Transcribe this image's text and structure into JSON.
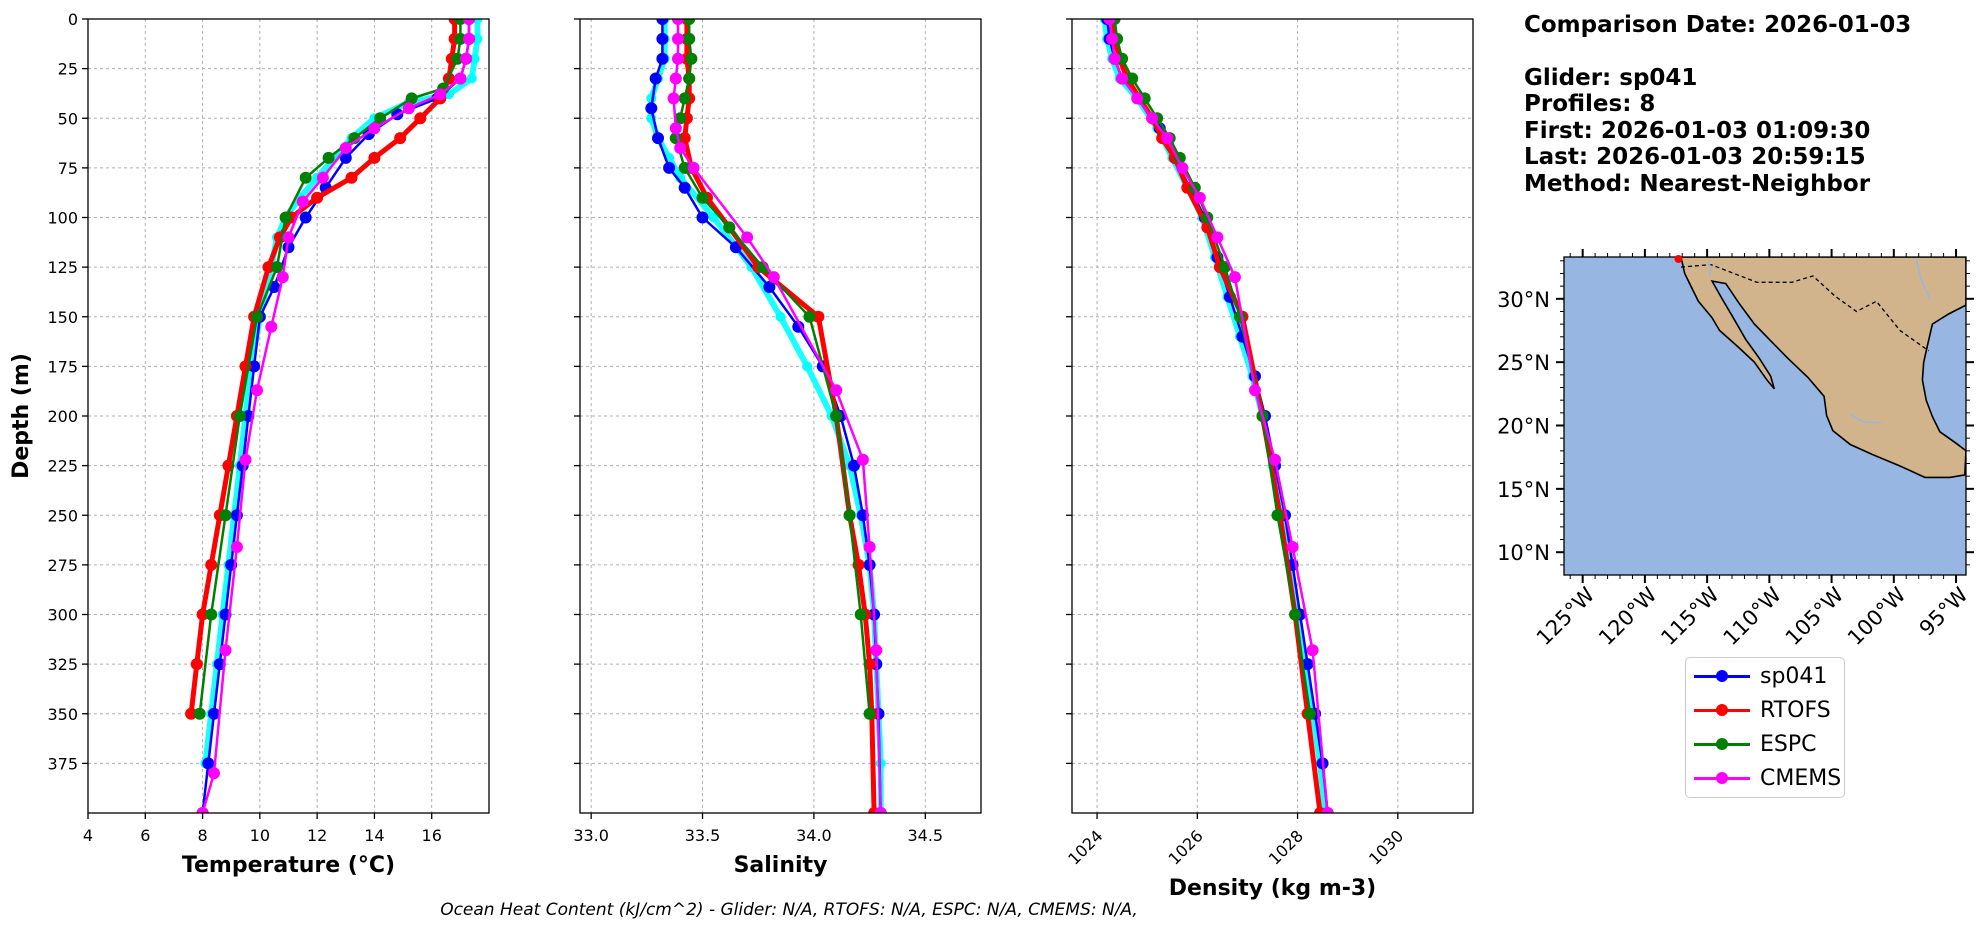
{
  "info": {
    "comparison_date": "Comparison Date: 2026-01-03",
    "glider": "Glider: sp041",
    "profiles": "Profiles: 8",
    "first": "First: 2026-01-03 01:09:30",
    "last": "Last: 2026-01-03 20:59:15",
    "method": "Method: Nearest-Neighbor"
  },
  "footer": "Ocean Heat Content (kJ/cm^2) - Glider: N/A,  RTOFS: N/A,  ESPC: N/A,  CMEMS: N/A,",
  "legend": [
    {
      "name": "sp041",
      "color": "#0000ff"
    },
    {
      "name": "RTOFS",
      "color": "#ff0000"
    },
    {
      "name": "ESPC",
      "color": "#008000"
    },
    {
      "name": "CMEMS",
      "color": "#ff00ff"
    }
  ],
  "chart_data": [
    {
      "type": "line",
      "xlabel": "Temperature (°C)",
      "ylabel": "Depth (m)",
      "xlim": [
        4,
        18
      ],
      "ylim": [
        400,
        0
      ],
      "xticks": [
        4,
        6,
        8,
        10,
        12,
        14,
        16
      ],
      "yticks": [
        0,
        25,
        50,
        75,
        100,
        125,
        150,
        175,
        200,
        225,
        250,
        275,
        300,
        325,
        350,
        375
      ],
      "grid": true,
      "series": [
        {
          "name": "glider_raw",
          "color": "#00ffff",
          "x": [
            17.6,
            17.6,
            17.5,
            17.4,
            16.6,
            15.2,
            14.0,
            13.2,
            12.6,
            12.0,
            11.4,
            10.9,
            10.6,
            10.4,
            10.0,
            9.7,
            9.5,
            9.3,
            9.1,
            8.9,
            8.7,
            8.5,
            8.3,
            8.1
          ],
          "y": [
            0,
            10,
            20,
            30,
            38,
            42,
            50,
            60,
            70,
            80,
            90,
            100,
            110,
            125,
            150,
            175,
            200,
            225,
            250,
            275,
            300,
            325,
            350,
            375
          ]
        },
        {
          "name": "sp041",
          "color": "#0000ff",
          "x": [
            17.3,
            17.3,
            17.2,
            17.0,
            16.2,
            14.8,
            13.8,
            13.0,
            12.3,
            11.6,
            11.0,
            10.5,
            10.0,
            9.8,
            9.6,
            9.4,
            9.2,
            9.0,
            8.8,
            8.6,
            8.4,
            8.2,
            8.0
          ],
          "y": [
            0,
            10,
            20,
            30,
            40,
            48,
            58,
            70,
            85,
            100,
            115,
            135,
            150,
            175,
            200,
            225,
            250,
            275,
            300,
            325,
            350,
            375,
            400
          ]
        },
        {
          "name": "RTOFS",
          "color": "#ff0000",
          "x": [
            16.8,
            16.8,
            16.7,
            16.6,
            16.3,
            15.6,
            14.9,
            14.0,
            13.2,
            12.0,
            11.1,
            10.7,
            10.3,
            9.8,
            9.5,
            9.2,
            8.9,
            8.6,
            8.3,
            8.0,
            7.8,
            7.6
          ],
          "y": [
            0,
            10,
            20,
            30,
            40,
            50,
            60,
            70,
            80,
            90,
            100,
            110,
            125,
            150,
            175,
            200,
            225,
            250,
            275,
            300,
            325,
            350
          ]
        },
        {
          "name": "ESPC",
          "color": "#008000",
          "x": [
            17.0,
            17.0,
            16.9,
            16.4,
            15.3,
            14.2,
            13.3,
            12.4,
            11.6,
            10.9,
            10.6,
            9.9,
            9.3,
            8.8,
            8.3,
            7.9
          ],
          "y": [
            0,
            10,
            20,
            35,
            40,
            50,
            60,
            70,
            80,
            100,
            125,
            150,
            200,
            250,
            300,
            350
          ]
        },
        {
          "name": "CMEMS",
          "color": "#ff00ff",
          "x": [
            17.3,
            17.3,
            17.2,
            17.0,
            16.3,
            15.2,
            14.0,
            13.0,
            12.2,
            11.5,
            11.0,
            10.8,
            10.4,
            9.9,
            9.5,
            9.2,
            8.8,
            8.4,
            8.0
          ],
          "y": [
            0,
            10,
            20,
            30,
            38,
            45,
            55,
            65,
            80,
            92,
            110,
            130,
            155,
            187,
            222,
            266,
            318,
            380,
            400
          ]
        }
      ]
    },
    {
      "type": "line",
      "xlabel": "Salinity",
      "ylabel": "",
      "xlim": [
        32.95,
        34.75
      ],
      "ylim": [
        400,
        0
      ],
      "xticks": [
        33.0,
        33.5,
        34.0,
        34.5
      ],
      "grid": true,
      "series": [
        {
          "name": "glider_raw",
          "color": "#00ffff",
          "x": [
            33.33,
            33.33,
            33.33,
            33.3,
            33.27,
            33.27,
            33.3,
            33.35,
            33.4,
            33.55,
            33.72,
            33.85,
            33.97,
            34.08,
            34.16,
            34.21,
            34.25,
            34.27,
            34.28,
            34.29,
            34.3,
            34.3
          ],
          "y": [
            0,
            10,
            20,
            30,
            40,
            50,
            60,
            70,
            80,
            100,
            125,
            150,
            175,
            200,
            225,
            250,
            275,
            300,
            325,
            350,
            375,
            400
          ]
        },
        {
          "name": "sp041",
          "color": "#0000ff",
          "x": [
            33.32,
            33.32,
            33.32,
            33.29,
            33.27,
            33.3,
            33.35,
            33.42,
            33.5,
            33.65,
            33.8,
            33.93,
            34.04,
            34.12,
            34.18,
            34.22,
            34.25,
            34.27,
            34.28,
            34.29,
            34.3
          ],
          "y": [
            0,
            10,
            20,
            30,
            45,
            60,
            75,
            85,
            100,
            115,
            135,
            155,
            175,
            200,
            225,
            250,
            275,
            300,
            325,
            350,
            400
          ]
        },
        {
          "name": "RTOFS",
          "color": "#ff0000",
          "x": [
            33.43,
            33.43,
            33.43,
            33.44,
            33.44,
            33.43,
            33.42,
            33.45,
            33.52,
            33.62,
            33.75,
            34.02,
            34.1,
            34.16,
            34.2,
            34.23,
            34.25,
            34.26,
            34.27
          ],
          "y": [
            0,
            10,
            20,
            30,
            40,
            50,
            60,
            75,
            90,
            105,
            125,
            150,
            200,
            250,
            275,
            300,
            325,
            350,
            400
          ]
        },
        {
          "name": "ESPC",
          "color": "#008000",
          "x": [
            33.44,
            33.44,
            33.45,
            33.44,
            33.42,
            33.4,
            33.38,
            33.42,
            33.5,
            33.62,
            33.77,
            33.98,
            34.1,
            34.16,
            34.21,
            34.25
          ],
          "y": [
            0,
            10,
            20,
            30,
            40,
            50,
            60,
            75,
            90,
            105,
            125,
            150,
            200,
            250,
            300,
            350
          ]
        },
        {
          "name": "CMEMS",
          "color": "#ff00ff",
          "x": [
            33.39,
            33.39,
            33.39,
            33.38,
            33.37,
            33.38,
            33.4,
            33.46,
            33.7,
            33.82,
            34.1,
            34.22,
            34.25,
            34.28,
            34.3
          ],
          "y": [
            0,
            10,
            20,
            30,
            40,
            55,
            65,
            75,
            110,
            130,
            187,
            222,
            266,
            318,
            400
          ]
        }
      ]
    },
    {
      "type": "line",
      "xlabel": "Density (kg m-3)",
      "ylabel": "",
      "xlim": [
        1023.5,
        1031.5
      ],
      "ylim": [
        400,
        0
      ],
      "xticks": [
        1024,
        1026,
        1028,
        1030
      ],
      "grid": true,
      "series": [
        {
          "name": "glider_raw",
          "color": "#00ffff",
          "x": [
            1024.15,
            1024.2,
            1024.3,
            1024.45,
            1024.8,
            1025.2,
            1025.5,
            1025.8,
            1026.1,
            1026.35,
            1026.6,
            1026.85,
            1027.1,
            1027.3,
            1027.5,
            1027.7,
            1027.85,
            1028.0,
            1028.15,
            1028.3,
            1028.45,
            1028.55
          ],
          "y": [
            0,
            10,
            20,
            30,
            40,
            55,
            70,
            85,
            100,
            120,
            140,
            160,
            180,
            200,
            225,
            250,
            275,
            300,
            325,
            350,
            375,
            400
          ]
        },
        {
          "name": "sp041",
          "color": "#0000ff",
          "x": [
            1024.2,
            1024.25,
            1024.35,
            1024.5,
            1024.85,
            1025.25,
            1025.55,
            1025.85,
            1026.15,
            1026.4,
            1026.65,
            1026.9,
            1027.15,
            1027.35,
            1027.55,
            1027.75,
            1027.9,
            1028.05,
            1028.2,
            1028.35,
            1028.5,
            1028.6
          ],
          "y": [
            0,
            10,
            20,
            30,
            40,
            55,
            70,
            85,
            100,
            120,
            140,
            160,
            180,
            200,
            225,
            250,
            275,
            300,
            325,
            350,
            375,
            400
          ]
        },
        {
          "name": "RTOFS",
          "color": "#ff0000",
          "x": [
            1024.3,
            1024.35,
            1024.45,
            1024.6,
            1024.85,
            1025.1,
            1025.3,
            1025.55,
            1025.8,
            1026.2,
            1026.45,
            1026.9,
            1027.3,
            1027.65,
            1027.95,
            1028.2,
            1028.45
          ],
          "y": [
            0,
            10,
            20,
            30,
            40,
            50,
            60,
            70,
            85,
            105,
            125,
            150,
            200,
            250,
            300,
            350,
            400
          ]
        },
        {
          "name": "ESPC",
          "color": "#008000",
          "x": [
            1024.35,
            1024.4,
            1024.5,
            1024.7,
            1024.95,
            1025.2,
            1025.45,
            1025.65,
            1025.95,
            1026.2,
            1026.55,
            1026.85,
            1027.3,
            1027.6,
            1027.95,
            1028.25
          ],
          "y": [
            0,
            10,
            20,
            30,
            40,
            50,
            60,
            70,
            85,
            100,
            125,
            150,
            200,
            250,
            300,
            350
          ]
        },
        {
          "name": "CMEMS",
          "color": "#ff00ff",
          "x": [
            1024.25,
            1024.3,
            1024.35,
            1024.5,
            1024.8,
            1025.1,
            1025.4,
            1025.7,
            1026.05,
            1026.4,
            1026.75,
            1027.15,
            1027.55,
            1027.9,
            1028.3,
            1028.6
          ],
          "y": [
            0,
            10,
            20,
            30,
            40,
            50,
            60,
            75,
            90,
            110,
            130,
            187,
            222,
            266,
            318,
            400
          ]
        }
      ]
    },
    {
      "type": "map",
      "lat_ticks": [
        "30°N",
        "25°N",
        "20°N",
        "15°N",
        "10°N"
      ],
      "lat_values": [
        30,
        25,
        20,
        15,
        10
      ],
      "lon_ticks": [
        "125°W",
        "120°W",
        "115°W",
        "110°W",
        "105°W",
        "100°W",
        "95°W"
      ],
      "lon_values": [
        -125,
        -120,
        -115,
        -110,
        -105,
        -100,
        -95
      ],
      "lon_range": [
        -126.5,
        -94.2
      ],
      "lat_range": [
        8.2,
        33.3
      ],
      "ocean_color": "#97b6e1",
      "land_color": "#d2b48c"
    }
  ]
}
